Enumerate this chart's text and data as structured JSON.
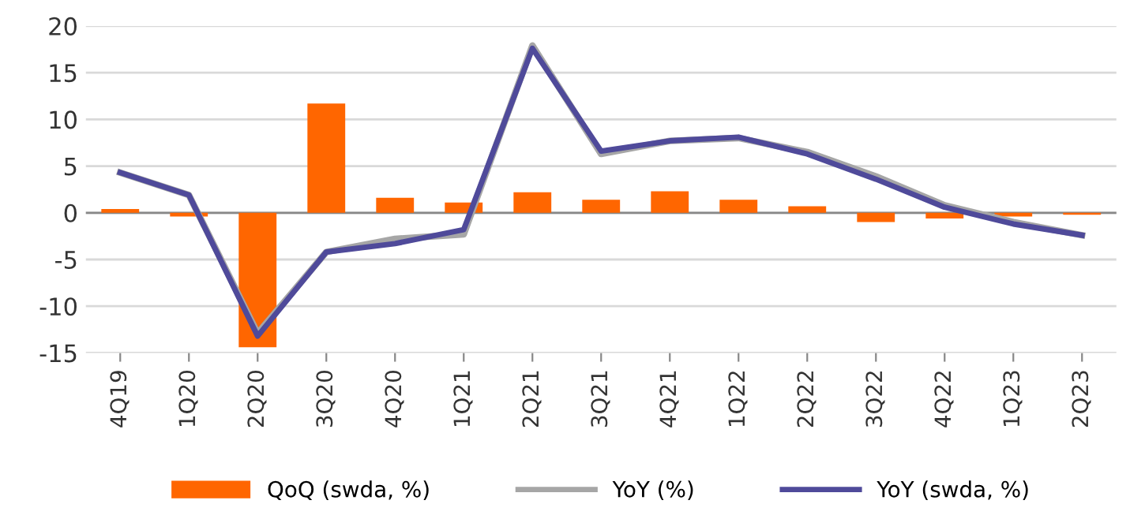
{
  "chart_data": {
    "type": "bar",
    "categories": [
      "4Q19",
      "1Q20",
      "2Q20",
      "3Q20",
      "4Q20",
      "1Q21",
      "2Q21",
      "3Q21",
      "4Q21",
      "1Q22",
      "2Q22",
      "3Q22",
      "4Q22",
      "1Q23",
      "2Q23"
    ],
    "series": [
      {
        "name": "QoQ (swda, %)",
        "color": "#ff6600",
        "values": [
          0.4,
          -0.4,
          -14.4,
          11.7,
          1.6,
          1.1,
          2.2,
          1.4,
          2.3,
          1.4,
          0.7,
          -1.0,
          -0.6,
          -0.4,
          -0.2
        ]
      },
      {
        "name": "YoY (%)",
        "type": "line",
        "color": "#a6a6a6",
        "values": [
          4.3,
          1.9,
          -12.9,
          -4.2,
          -2.8,
          -2.3,
          17.9,
          6.3,
          7.7,
          8.0,
          6.5,
          3.9,
          0.8,
          -1.0,
          -2.4
        ]
      },
      {
        "name": "YoY (swda, %)",
        "type": "line",
        "color": "#4f4a9a",
        "values": [
          4.3,
          1.9,
          -13.2,
          -4.2,
          -3.3,
          -1.8,
          17.6,
          6.6,
          7.7,
          8.1,
          6.3,
          3.6,
          0.6,
          -1.2,
          -2.4
        ]
      }
    ],
    "ylim": [
      -15,
      20
    ],
    "yticks": [
      -15,
      -10,
      -5,
      0,
      5,
      10,
      15,
      20
    ],
    "grid": "y",
    "legend": "bottom"
  }
}
